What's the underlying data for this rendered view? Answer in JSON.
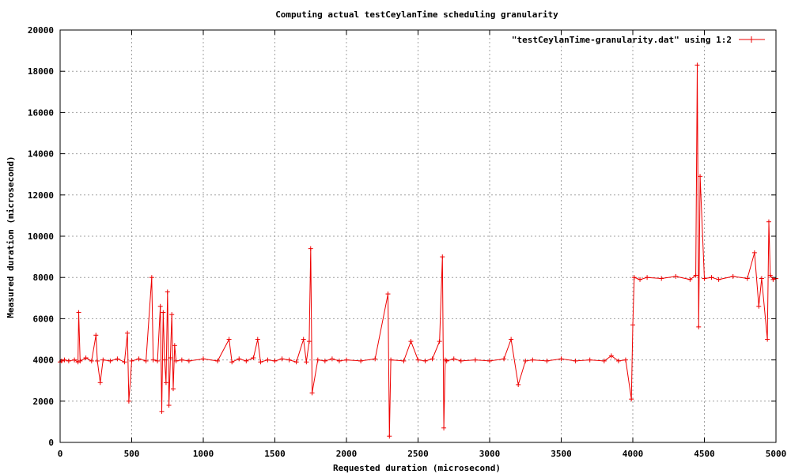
{
  "chart_data": {
    "type": "line",
    "title": "Computing actual testCeylanTime scheduling granularity",
    "xlabel": "Requested duration (microsecond)",
    "ylabel": "Measured duration (microsecond)",
    "xlim": [
      0,
      5000
    ],
    "ylim": [
      0,
      20000
    ],
    "xticks": [
      0,
      500,
      1000,
      1500,
      2000,
      2500,
      3000,
      3500,
      4000,
      4500,
      5000
    ],
    "yticks": [
      0,
      2000,
      4000,
      6000,
      8000,
      10000,
      12000,
      14000,
      16000,
      18000,
      20000
    ],
    "grid": true,
    "legend_position": "top-right",
    "series": [
      {
        "name": "\"testCeylanTime-granularity.dat\" using 1:2",
        "color": "#ee0000",
        "marker": "plus",
        "x": [
          0,
          10,
          30,
          60,
          100,
          125,
          130,
          140,
          180,
          220,
          250,
          260,
          280,
          300,
          350,
          400,
          450,
          470,
          480,
          500,
          550,
          600,
          640,
          650,
          680,
          700,
          710,
          720,
          730,
          740,
          750,
          760,
          770,
          780,
          790,
          800,
          810,
          850,
          900,
          1000,
          1100,
          1180,
          1200,
          1250,
          1300,
          1350,
          1380,
          1400,
          1450,
          1500,
          1550,
          1600,
          1650,
          1700,
          1720,
          1740,
          1750,
          1760,
          1800,
          1850,
          1900,
          1950,
          2000,
          2100,
          2200,
          2290,
          2300,
          2310,
          2400,
          2450,
          2500,
          2550,
          2600,
          2650,
          2670,
          2680,
          2690,
          2700,
          2750,
          2800,
          2900,
          3000,
          3100,
          3150,
          3200,
          3250,
          3300,
          3400,
          3500,
          3600,
          3700,
          3800,
          3850,
          3900,
          3950,
          3990,
          4000,
          4010,
          4050,
          4100,
          4200,
          4300,
          4400,
          4440,
          4450,
          4460,
          4470,
          4500,
          4550,
          4600,
          4700,
          4800,
          4850,
          4880,
          4900,
          4940,
          4950,
          4960,
          4980,
          5000
        ],
        "y": [
          3900,
          3950,
          4000,
          3950,
          4000,
          3900,
          6300,
          3950,
          4100,
          3950,
          5200,
          3950,
          2900,
          4000,
          3950,
          4050,
          3900,
          5300,
          2000,
          3950,
          4050,
          3950,
          8000,
          4000,
          3950,
          6600,
          1500,
          6300,
          4000,
          2900,
          7300,
          1800,
          4100,
          6200,
          2600,
          4700,
          3950,
          4000,
          3950,
          4050,
          3950,
          5000,
          3900,
          4050,
          3950,
          4100,
          5000,
          3900,
          4000,
          3950,
          4050,
          4000,
          3900,
          5000,
          3900,
          4900,
          9400,
          2400,
          4000,
          3950,
          4050,
          3950,
          4000,
          3950,
          4050,
          7200,
          300,
          4000,
          3950,
          4900,
          4000,
          3950,
          4050,
          4900,
          9000,
          700,
          4000,
          3950,
          4050,
          3950,
          4000,
          3950,
          4050,
          5000,
          2800,
          3950,
          4000,
          3950,
          4050,
          3950,
          4000,
          3950,
          4200,
          3950,
          4000,
          2100,
          5700,
          8000,
          7900,
          8000,
          7950,
          8050,
          7900,
          8100,
          18300,
          5600,
          12900,
          7950,
          8000,
          7900,
          8050,
          7950,
          9200,
          6600,
          7950,
          5000,
          10700,
          8100,
          7900,
          7950
        ]
      }
    ]
  }
}
